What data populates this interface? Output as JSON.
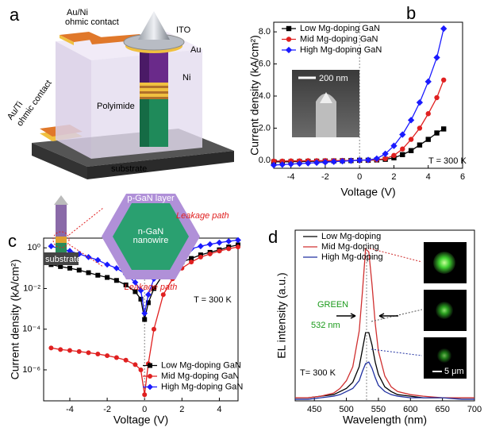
{
  "diagram": {
    "panel_label": "a",
    "labels": {
      "au_ni": "Au/Ni",
      "ohmic_top": "ohmic contact",
      "ito": "ITO",
      "au": "Au",
      "ni": "Ni",
      "polyimide": "Polyimide",
      "au_ti": "Au/Ti",
      "ohmic_bottom": "ohmic contact",
      "substrate": "substrate"
    }
  },
  "chart_data": [
    {
      "type": "line",
      "panel_label": "b",
      "xlabel": "Voltage (V)",
      "ylabel": "Current density (kA/cm²)",
      "x": [
        -5,
        -4.5,
        -4,
        -3.5,
        -3,
        -2.5,
        -2,
        -1.5,
        -1,
        -0.5,
        0,
        0.5,
        1,
        1.5,
        2,
        2.5,
        3,
        3.5,
        4,
        4.5,
        4.9
      ],
      "xlim": [
        -5,
        6
      ],
      "ylim": [
        -0.5,
        8.6
      ],
      "xticks": [
        -4,
        -2,
        0,
        2,
        4,
        6
      ],
      "yticks": [
        {
          "value": 0,
          "label": "0.0"
        },
        {
          "value": 2,
          "label": "2.0"
        },
        {
          "value": 4,
          "label": "4.0"
        },
        {
          "value": 6,
          "label": "6.0"
        },
        {
          "value": 8,
          "label": "8.0"
        }
      ],
      "legend": "upper left",
      "annotation": "T = 300 K",
      "inset_scale": "200 nm",
      "series": [
        {
          "name": "Low Mg-doping GaN",
          "color": "#000000",
          "marker": "square",
          "values": [
            -0.1,
            -0.1,
            -0.09,
            -0.08,
            -0.07,
            -0.06,
            -0.05,
            -0.04,
            -0.03,
            -0.02,
            0,
            0,
            0.02,
            0.06,
            0.15,
            0.35,
            0.6,
            0.95,
            1.3,
            1.7,
            1.95
          ]
        },
        {
          "name": "Mid Mg-doping GaN",
          "color": "#e02020",
          "marker": "circle",
          "values": [
            -0.05,
            -0.05,
            -0.04,
            -0.04,
            -0.03,
            -0.03,
            -0.02,
            -0.02,
            -0.01,
            -0.01,
            0,
            0,
            0.03,
            0.1,
            0.3,
            0.7,
            1.3,
            2.0,
            2.9,
            3.9,
            5.0
          ]
        },
        {
          "name": "High Mg-doping GaN",
          "color": "#1a1aff",
          "marker": "diamond",
          "values": [
            -0.3,
            -0.27,
            -0.24,
            -0.21,
            -0.18,
            -0.15,
            -0.12,
            -0.09,
            -0.06,
            -0.03,
            0,
            0.02,
            0.1,
            0.4,
            0.9,
            1.6,
            2.5,
            3.6,
            4.9,
            6.4,
            8.2
          ]
        }
      ]
    },
    {
      "type": "line",
      "panel_label": "c",
      "xlabel": "Voltage (V)",
      "ylabel": "Current density (kA/cm²)",
      "yscale": "log",
      "x": [
        -5,
        -4.5,
        -4,
        -3.5,
        -3,
        -2.5,
        -2,
        -1.5,
        -1,
        -0.5,
        -0.2,
        0,
        0.2,
        0.5,
        1,
        1.5,
        2,
        2.5,
        3,
        3.5,
        4,
        4.5,
        5
      ],
      "xlim": [
        -5.4,
        5
      ],
      "ylim": [
        3e-08,
        3
      ],
      "xticks": [
        -4,
        -2,
        0,
        2,
        4
      ],
      "yticks": [
        {
          "value": 1e-06,
          "label": "10⁻⁶"
        },
        {
          "value": 0.0001,
          "label": "10⁻⁴"
        },
        {
          "value": 0.01,
          "label": "10⁻²"
        },
        {
          "value": 1,
          "label": "10⁰"
        }
      ],
      "legend": "lower right",
      "annotation": "T = 300 K",
      "inset_labels": {
        "p_gan": "p-GaN layer",
        "n_gan": "n-GaN",
        "nanowire": "nanowire",
        "leak_1": "Leakage path",
        "leak_2": "Leakage path",
        "substrate": "substrate"
      },
      "series": [
        {
          "name": "Low Mg-doping GaN",
          "color": "#000000",
          "marker": "square",
          "values": [
            0.15,
            0.12,
            0.1,
            0.08,
            0.06,
            0.045,
            0.035,
            0.025,
            0.015,
            0.007,
            0.003,
            0.0003,
            0.002,
            0.01,
            0.05,
            0.1,
            0.2,
            0.3,
            0.45,
            0.6,
            0.8,
            1.1,
            1.4
          ]
        },
        {
          "name": "Mid Mg-doping GaN",
          "color": "#e02020",
          "marker": "circle",
          "values": [
            1.2e-05,
            1e-05,
            9e-06,
            8e-06,
            7e-06,
            6e-06,
            5e-06,
            4e-06,
            3e-06,
            1.8e-06,
            1e-06,
            6e-08,
            2e-06,
            0.0001,
            0.005,
            0.03,
            0.1,
            0.2,
            0.35,
            0.5,
            0.7,
            0.9,
            1.1
          ]
        },
        {
          "name": "High Mg-doping GaN",
          "color": "#1a1aff",
          "marker": "diamond",
          "values": [
            1.2,
            0.9,
            0.7,
            0.5,
            0.35,
            0.25,
            0.15,
            0.1,
            0.05,
            0.02,
            0.008,
            0.0006,
            0.005,
            0.03,
            0.15,
            0.3,
            0.6,
            0.9,
            1.2,
            1.5,
            1.8,
            2.1,
            2.4
          ]
        }
      ]
    },
    {
      "type": "line",
      "panel_label": "d",
      "xlabel": "Wavelength (nm)",
      "ylabel": "EL intensity (a.u.)",
      "x": [
        420,
        440,
        460,
        480,
        490,
        500,
        510,
        520,
        525,
        530,
        535,
        540,
        545,
        550,
        560,
        570,
        580,
        600,
        620,
        650,
        680,
        700
      ],
      "xlim": [
        420,
        700
      ],
      "ylim": [
        0,
        110
      ],
      "xticks": [
        450,
        500,
        550,
        600,
        650,
        700
      ],
      "legend": "upper left",
      "annotations": {
        "green": "GREEN",
        "peak": "532 nm",
        "temp": "T= 300 K",
        "scale": "5 μm"
      },
      "series": [
        {
          "name": "Low Mg-doping",
          "color": "#000000",
          "values": [
            2,
            2,
            3,
            4,
            6,
            8,
            12,
            22,
            33,
            44,
            44,
            36,
            25,
            17,
            9,
            6,
            4,
            3,
            2,
            2,
            2,
            2
          ]
        },
        {
          "name": "Mid Mg-doping",
          "color": "#d03030",
          "values": [
            2,
            2,
            3,
            5,
            8,
            13,
            22,
            45,
            70,
            98,
            96,
            75,
            50,
            32,
            16,
            9,
            6,
            4,
            3,
            2,
            2,
            2
          ]
        },
        {
          "name": "High Mg-doping",
          "color": "#2030a0",
          "values": [
            1,
            1,
            2,
            3,
            4,
            6,
            8,
            13,
            19,
            24,
            25,
            21,
            15,
            10,
            6,
            4,
            3,
            2,
            2,
            2,
            1,
            1
          ]
        }
      ]
    }
  ]
}
